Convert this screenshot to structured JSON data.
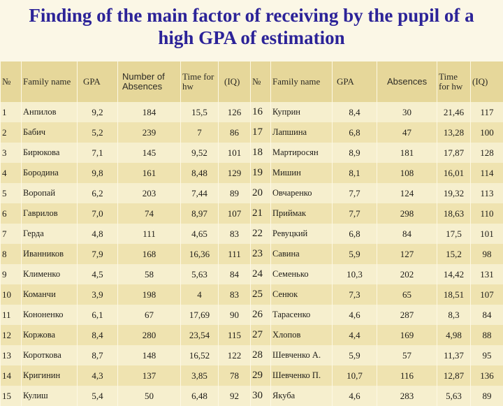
{
  "title": {
    "line1": "Finding of the main factor of receiving by the pupil of a",
    "line2": "high GPA of estimation"
  },
  "columns": [
    "№",
    "Family name",
    "GPA",
    "Number of Absences",
    "Time for hw",
    "(IQ)",
    "№",
    "Family name",
    "GPA",
    "Absences",
    "Time for hw",
    "(IQ)"
  ],
  "rows": [
    {
      "n1": "1",
      "name1": "Анпилов",
      "gpa1": "9,2",
      "abs1": "184",
      "time1": "15,5",
      "iq1": "126",
      "n2": "16",
      "name2": "Куприн",
      "gpa2": "8,4",
      "abs2": "30",
      "time2": "21,46",
      "iq2": "117"
    },
    {
      "n1": "2",
      "name1": "Бабич",
      "gpa1": "5,2",
      "abs1": "239",
      "time1": "7",
      "iq1": "86",
      "n2": "17",
      "name2": "Лапшина",
      "gpa2": "6,8",
      "abs2": "47",
      "time2": "13,28",
      "iq2": "100"
    },
    {
      "n1": "3",
      "name1": "Бирюкова",
      "gpa1": "7,1",
      "abs1": "145",
      "time1": "9,52",
      "iq1": "101",
      "n2": "18",
      "name2": "Мартиросян",
      "gpa2": "8,9",
      "abs2": "181",
      "time2": "17,87",
      "iq2": "128"
    },
    {
      "n1": "4",
      "name1": "Бородина",
      "gpa1": "9,8",
      "abs1": "161",
      "time1": "8,48",
      "iq1": "129",
      "n2": "19",
      "name2": "Мишин",
      "gpa2": "8,1",
      "abs2": "108",
      "time2": "16,01",
      "iq2": "114"
    },
    {
      "n1": "5",
      "name1": "Воропай",
      "gpa1": "6,2",
      "abs1": "203",
      "time1": "7,44",
      "iq1": "89",
      "n2": "20",
      "name2": "Овчаренко",
      "gpa2": "7,7",
      "abs2": "124",
      "time2": "19,32",
      "iq2": "113"
    },
    {
      "n1": "6",
      "name1": "Гаврилов",
      "gpa1": "7,0",
      "abs1": "74",
      "time1": "8,97",
      "iq1": "107",
      "n2": "21",
      "name2": "Приймак",
      "gpa2": "7,7",
      "abs2": "298",
      "time2": "18,63",
      "iq2": "110"
    },
    {
      "n1": "7",
      "name1": "Герда",
      "gpa1": "4,8",
      "abs1": "111",
      "time1": "4,65",
      "iq1": "83",
      "n2": "22",
      "name2": "Ревуцкий",
      "gpa2": "6,8",
      "abs2": "84",
      "time2": "17,5",
      "iq2": "101"
    },
    {
      "n1": "8",
      "name1": "Иванников",
      "gpa1": "7,9",
      "abs1": "168",
      "time1": "16,36",
      "iq1": "111",
      "n2": "23",
      "name2": "Савина",
      "gpa2": "5,9",
      "abs2": "127",
      "time2": "15,2",
      "iq2": "98"
    },
    {
      "n1": "9",
      "name1": "Клименко",
      "gpa1": "4,5",
      "abs1": "58",
      "time1": "5,63",
      "iq1": "84",
      "n2": "24",
      "name2": "Семенько",
      "gpa2": "10,3",
      "abs2": "202",
      "time2": "14,42",
      "iq2": "131"
    },
    {
      "n1": "10",
      "name1": "Команчи",
      "gpa1": "3,9",
      "abs1": "198",
      "time1": "4",
      "iq1": "83",
      "n2": "25",
      "name2": "Сенюк",
      "gpa2": "7,3",
      "abs2": "65",
      "time2": "18,51",
      "iq2": "107"
    },
    {
      "n1": "11",
      "name1": "Кононенко",
      "gpa1": "6,1",
      "abs1": "67",
      "time1": "17,69",
      "iq1": "90",
      "n2": "26",
      "name2": "Тарасенко",
      "gpa2": "4,6",
      "abs2": "287",
      "time2": "8,3",
      "iq2": "84"
    },
    {
      "n1": "12",
      "name1": "Коржова",
      "gpa1": "8,4",
      "abs1": "280",
      "time1": "23,54",
      "iq1": "115",
      "n2": "27",
      "name2": "Хлопов",
      "gpa2": "4,4",
      "abs2": "169",
      "time2": "4,98",
      "iq2": "88"
    },
    {
      "n1": "13",
      "name1": "Короткова",
      "gpa1": "8,7",
      "abs1": "148",
      "time1": "16,52",
      "iq1": "122",
      "n2": "28",
      "name2": "Шевченко А.",
      "gpa2": "5,9",
      "abs2": "57",
      "time2": "11,37",
      "iq2": "95"
    },
    {
      "n1": "14",
      "name1": "Кригинин",
      "gpa1": "4,3",
      "abs1": "137",
      "time1": "3,85",
      "iq1": "78",
      "n2": "29",
      "name2": "Шевченко П.",
      "gpa2": "10,7",
      "abs2": "116",
      "time2": "12,87",
      "iq2": "136"
    },
    {
      "n1": "15",
      "name1": "Кулиш",
      "gpa1": "5,4",
      "abs1": "50",
      "time1": "6,48",
      "iq1": "92",
      "n2": "30",
      "name2": "Якуба",
      "gpa2": "4,6",
      "abs2": "283",
      "time2": "5,63",
      "iq2": "89"
    }
  ]
}
